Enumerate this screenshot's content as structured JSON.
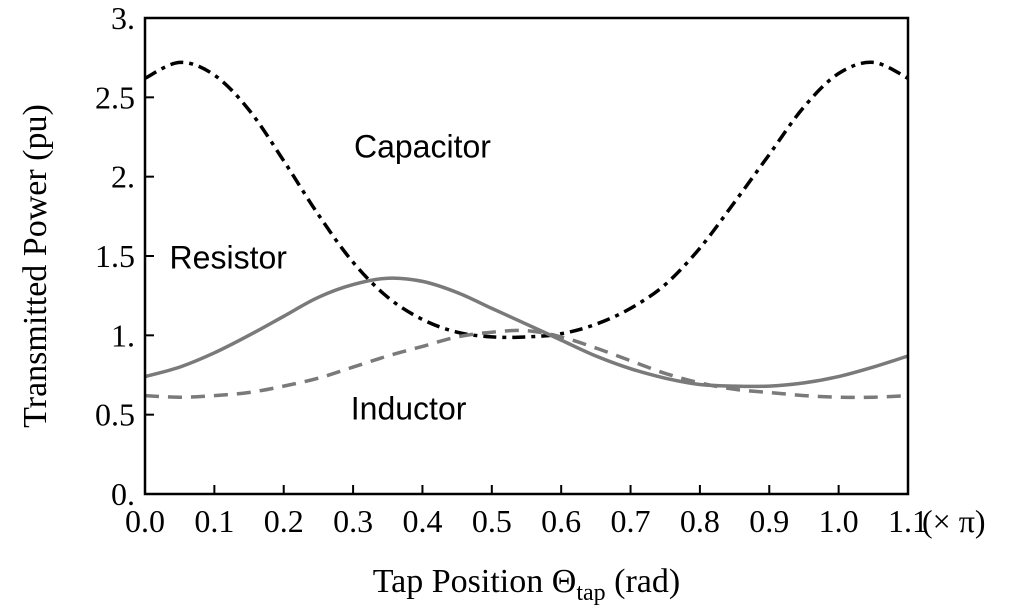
{
  "chart_data": {
    "type": "line",
    "xlabel": "Tap Position Θ",
    "xlabel_sub": "tap",
    "xlabel_unit": "(rad)",
    "x_unit_note": "(× π)",
    "ylabel": "Transmitted Power (pu)",
    "xlim": [
      0.0,
      1.1
    ],
    "ylim": [
      0.0,
      3.0
    ],
    "x_ticks": [
      "0.0",
      "0.1",
      "0.2",
      "0.3",
      "0.4",
      "0.5",
      "0.6",
      "0.7",
      "0.8",
      "0.9",
      "1.0",
      "1.1"
    ],
    "y_ticks": [
      {
        "value": 0.0,
        "label": "0."
      },
      {
        "value": 0.5,
        "label": "0.5"
      },
      {
        "value": 1.0,
        "label": "1."
      },
      {
        "value": 1.5,
        "label": "1.5"
      },
      {
        "value": 2.0,
        "label": "2."
      },
      {
        "value": 2.5,
        "label": "2.5"
      },
      {
        "value": 3.0,
        "label": "3."
      }
    ],
    "grid": false,
    "legend": "none (inline labels)",
    "x": [
      0.0,
      0.05,
      0.1,
      0.15,
      0.2,
      0.25,
      0.3,
      0.35,
      0.4,
      0.45,
      0.5,
      0.55,
      0.6,
      0.65,
      0.7,
      0.75,
      0.8,
      0.85,
      0.9,
      0.95,
      1.0,
      1.05,
      1.1
    ],
    "series": [
      {
        "name": "Capacitor",
        "color": "#000000",
        "style": "dashdot",
        "values": [
          2.62,
          2.72,
          2.64,
          2.42,
          2.1,
          1.76,
          1.46,
          1.24,
          1.1,
          1.02,
          0.99,
          0.99,
          1.01,
          1.07,
          1.17,
          1.32,
          1.55,
          1.84,
          2.14,
          2.44,
          2.65,
          2.72,
          2.62
        ],
        "label_pos": [
          0.4,
          2.12
        ]
      },
      {
        "name": "Resistor",
        "color": "#7a7a7a",
        "style": "solid",
        "values": [
          0.74,
          0.8,
          0.89,
          1.0,
          1.12,
          1.24,
          1.32,
          1.36,
          1.34,
          1.27,
          1.17,
          1.07,
          0.97,
          0.87,
          0.79,
          0.73,
          0.69,
          0.68,
          0.68,
          0.7,
          0.74,
          0.8,
          0.87
        ],
        "label_pos": [
          0.12,
          1.42
        ]
      },
      {
        "name": "Inductor",
        "color": "#7a7a7a",
        "style": "dashed",
        "values": [
          0.62,
          0.61,
          0.62,
          0.64,
          0.68,
          0.73,
          0.8,
          0.87,
          0.93,
          0.99,
          1.02,
          1.03,
          0.99,
          0.92,
          0.84,
          0.76,
          0.7,
          0.66,
          0.64,
          0.62,
          0.61,
          0.61,
          0.62
        ],
        "label_pos": [
          0.38,
          0.47
        ]
      }
    ]
  }
}
